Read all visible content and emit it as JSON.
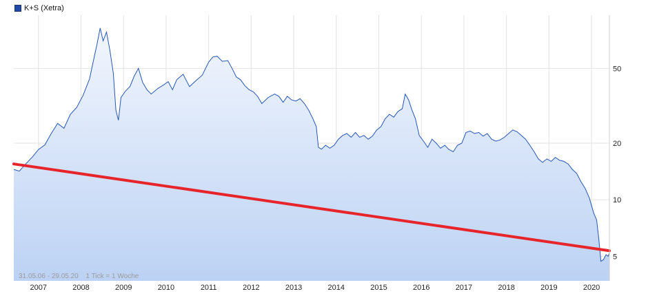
{
  "legend": {
    "label": "K+S (Xetra)",
    "color": "#1f4aa8"
  },
  "range_note": {
    "period": "31.05.06 - 29.05.20",
    "interval": "1 Tick = 1 Woche"
  },
  "colors": {
    "line": "#2456b3",
    "fill_top": "#f2f6fd",
    "fill_bottom": "#bcd2f4",
    "trend": "#e8242b",
    "grid": "#e2e2e2"
  },
  "chart_data": {
    "type": "area",
    "y_scale": "log",
    "ylim": [
      3.7,
      96
    ],
    "xlim": [
      2006.42,
      2020.42
    ],
    "x_ticks": [
      2007,
      2008,
      2009,
      2010,
      2011,
      2012,
      2013,
      2014,
      2015,
      2016,
      2017,
      2018,
      2019,
      2020
    ],
    "y_ticks": [
      5,
      10,
      20,
      50
    ],
    "legend_position": "top-left",
    "grid": true,
    "series": [
      {
        "name": "K+S (Xetra)",
        "points": [
          [
            2006.42,
            14.5
          ],
          [
            2006.55,
            14.2
          ],
          [
            2006.7,
            15.5
          ],
          [
            2006.85,
            16.8
          ],
          [
            2007.0,
            18.5
          ],
          [
            2007.15,
            19.6
          ],
          [
            2007.3,
            22.5
          ],
          [
            2007.45,
            25.5
          ],
          [
            2007.6,
            24.0
          ],
          [
            2007.75,
            28.5
          ],
          [
            2007.9,
            31.0
          ],
          [
            2008.05,
            36.0
          ],
          [
            2008.2,
            44.0
          ],
          [
            2008.3,
            56.0
          ],
          [
            2008.38,
            68.0
          ],
          [
            2008.45,
            82.0
          ],
          [
            2008.52,
            70.0
          ],
          [
            2008.6,
            78.0
          ],
          [
            2008.68,
            62.0
          ],
          [
            2008.76,
            47.0
          ],
          [
            2008.82,
            30.0
          ],
          [
            2008.88,
            26.5
          ],
          [
            2008.94,
            35.0
          ],
          [
            2009.05,
            38.0
          ],
          [
            2009.15,
            40.0
          ],
          [
            2009.25,
            45.5
          ],
          [
            2009.35,
            50.0
          ],
          [
            2009.45,
            42.0
          ],
          [
            2009.55,
            38.5
          ],
          [
            2009.65,
            36.5
          ],
          [
            2009.8,
            39.0
          ],
          [
            2009.95,
            41.0
          ],
          [
            2010.05,
            42.5
          ],
          [
            2010.15,
            38.5
          ],
          [
            2010.25,
            43.5
          ],
          [
            2010.4,
            46.5
          ],
          [
            2010.55,
            40.0
          ],
          [
            2010.7,
            43.0
          ],
          [
            2010.85,
            46.0
          ],
          [
            2011.0,
            54.0
          ],
          [
            2011.1,
            57.5
          ],
          [
            2011.2,
            58.0
          ],
          [
            2011.32,
            54.5
          ],
          [
            2011.45,
            55.0
          ],
          [
            2011.55,
            50.0
          ],
          [
            2011.65,
            45.0
          ],
          [
            2011.75,
            43.5
          ],
          [
            2011.85,
            40.5
          ],
          [
            2011.95,
            38.5
          ],
          [
            2012.05,
            37.5
          ],
          [
            2012.15,
            35.5
          ],
          [
            2012.25,
            32.5
          ],
          [
            2012.4,
            35.0
          ],
          [
            2012.55,
            36.5
          ],
          [
            2012.65,
            35.5
          ],
          [
            2012.75,
            33.0
          ],
          [
            2012.85,
            35.5
          ],
          [
            2012.95,
            34.0
          ],
          [
            2013.05,
            33.5
          ],
          [
            2013.15,
            34.5
          ],
          [
            2013.25,
            32.5
          ],
          [
            2013.35,
            30.0
          ],
          [
            2013.45,
            27.0
          ],
          [
            2013.53,
            24.5
          ],
          [
            2013.58,
            19.0
          ],
          [
            2013.65,
            18.6
          ],
          [
            2013.75,
            19.5
          ],
          [
            2013.85,
            18.8
          ],
          [
            2013.95,
            19.5
          ],
          [
            2014.05,
            21.0
          ],
          [
            2014.15,
            22.0
          ],
          [
            2014.25,
            22.5
          ],
          [
            2014.35,
            21.5
          ],
          [
            2014.45,
            22.8
          ],
          [
            2014.55,
            21.5
          ],
          [
            2014.65,
            22.0
          ],
          [
            2014.75,
            21.0
          ],
          [
            2014.85,
            21.8
          ],
          [
            2014.95,
            23.5
          ],
          [
            2015.05,
            24.5
          ],
          [
            2015.15,
            27.0
          ],
          [
            2015.25,
            28.5
          ],
          [
            2015.35,
            27.5
          ],
          [
            2015.45,
            29.5
          ],
          [
            2015.55,
            30.5
          ],
          [
            2015.62,
            36.5
          ],
          [
            2015.7,
            34.0
          ],
          [
            2015.78,
            30.0
          ],
          [
            2015.86,
            27.0
          ],
          [
            2015.95,
            22.0
          ],
          [
            2016.05,
            20.5
          ],
          [
            2016.15,
            19.0
          ],
          [
            2016.25,
            21.0
          ],
          [
            2016.35,
            20.0
          ],
          [
            2016.45,
            18.8
          ],
          [
            2016.55,
            19.5
          ],
          [
            2016.65,
            18.5
          ],
          [
            2016.75,
            18.0
          ],
          [
            2016.85,
            19.5
          ],
          [
            2016.95,
            20.0
          ],
          [
            2017.05,
            22.8
          ],
          [
            2017.15,
            23.2
          ],
          [
            2017.25,
            22.5
          ],
          [
            2017.35,
            22.8
          ],
          [
            2017.45,
            21.8
          ],
          [
            2017.55,
            22.5
          ],
          [
            2017.65,
            21.0
          ],
          [
            2017.75,
            20.5
          ],
          [
            2017.85,
            20.8
          ],
          [
            2017.95,
            21.5
          ],
          [
            2018.05,
            22.5
          ],
          [
            2018.15,
            23.5
          ],
          [
            2018.25,
            23.0
          ],
          [
            2018.35,
            22.0
          ],
          [
            2018.45,
            21.0
          ],
          [
            2018.55,
            19.5
          ],
          [
            2018.65,
            18.0
          ],
          [
            2018.75,
            16.5
          ],
          [
            2018.85,
            15.8
          ],
          [
            2018.95,
            16.5
          ],
          [
            2019.05,
            16.0
          ],
          [
            2019.15,
            16.8
          ],
          [
            2019.25,
            16.2
          ],
          [
            2019.35,
            16.0
          ],
          [
            2019.45,
            15.5
          ],
          [
            2019.55,
            14.5
          ],
          [
            2019.65,
            13.8
          ],
          [
            2019.75,
            12.5
          ],
          [
            2019.85,
            11.5
          ],
          [
            2019.95,
            10.2
          ],
          [
            2020.05,
            8.5
          ],
          [
            2020.12,
            7.8
          ],
          [
            2020.17,
            6.2
          ],
          [
            2020.22,
            4.7
          ],
          [
            2020.28,
            4.8
          ],
          [
            2020.34,
            5.1
          ],
          [
            2020.39,
            5.0
          ],
          [
            2020.42,
            5.2
          ]
        ]
      }
    ],
    "trendline": {
      "from": [
        2006.42,
        15.5
      ],
      "to": [
        2020.42,
        5.35
      ]
    }
  }
}
